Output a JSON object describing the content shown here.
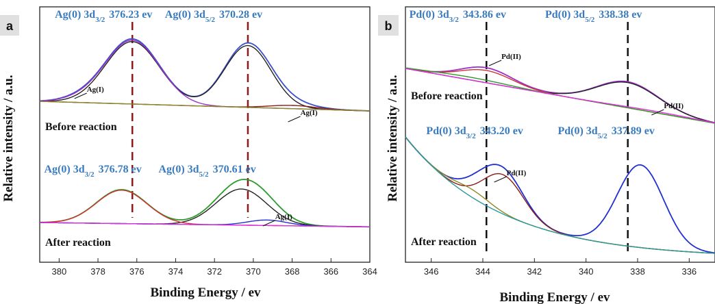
{
  "ylabel": "Relative intensity / a.u.",
  "chart_data": [
    {
      "panel": "a",
      "type": "line",
      "xlabel": "Binding Energy / ev",
      "xlim": [
        381,
        364
      ],
      "xticks": [
        380,
        378,
        376,
        374,
        372,
        370,
        368,
        366,
        364
      ],
      "conditions": [
        "Before reaction",
        "After reaction"
      ],
      "peak_labels": [
        {
          "element": "Ag(0) 3d",
          "sub": "3/2",
          "value": "376.23 ev",
          "energy": 376.23,
          "state": "before"
        },
        {
          "element": "Ag(0) 3d",
          "sub": "5/2",
          "value": "370.28 ev",
          "energy": 370.28,
          "state": "before"
        },
        {
          "element": "Ag(0) 3d",
          "sub": "3/2",
          "value": "376.78 ev",
          "energy": 376.78,
          "state": "after"
        },
        {
          "element": "Ag(0) 3d",
          "sub": "5/2",
          "value": "370.61 ev",
          "energy": 370.61,
          "state": "after"
        }
      ],
      "species_labels": [
        {
          "text": "Ag(I)",
          "energy": 379.0,
          "state": "before"
        },
        {
          "text": "Ag(I)",
          "energy": 368.0,
          "state": "before"
        },
        {
          "text": "Ag(I)",
          "energy": 369.3,
          "state": "after"
        }
      ],
      "reference_lines": [
        376.23,
        370.28
      ],
      "series": [
        {
          "state": "before",
          "role": "envelope",
          "color": "#3b50c8",
          "peaks": [
            [
              376.23,
              1.0,
              1.4
            ],
            [
              370.28,
              0.98,
              1.2
            ],
            [
              378.9,
              0.05,
              1.0
            ],
            [
              368.0,
              0.07,
              1.2
            ]
          ]
        },
        {
          "state": "before",
          "role": "fit",
          "color": "#222222",
          "peaks": [
            [
              376.23,
              0.96,
              1.4
            ],
            [
              370.28,
              0.95,
              1.2
            ]
          ]
        },
        {
          "state": "before",
          "role": "component",
          "color": "#9b30c8",
          "peaks": [
            [
              376.23,
              0.98,
              1.4
            ],
            [
              378.9,
              0.04,
              1.0
            ]
          ]
        },
        {
          "state": "before",
          "role": "component",
          "color": "#8b1a1a",
          "peaks": [
            [
              368.0,
              0.05,
              1.2
            ]
          ]
        },
        {
          "state": "before",
          "role": "baseline",
          "color": "#8a8a2a",
          "peaks": []
        },
        {
          "state": "after",
          "role": "envelope",
          "color": "#2a9a2a",
          "peaks": [
            [
              376.78,
              0.62,
              1.3
            ],
            [
              370.61,
              0.78,
              1.3
            ],
            [
              369.3,
              0.12,
              1.0
            ]
          ]
        },
        {
          "state": "after",
          "role": "fit",
          "color": "#222222",
          "peaks": [
            [
              370.61,
              0.66,
              1.3
            ]
          ]
        },
        {
          "state": "after",
          "role": "component",
          "color": "#d43030",
          "peaks": [
            [
              376.78,
              0.61,
              1.3
            ]
          ]
        },
        {
          "state": "after",
          "role": "component",
          "color": "#2030d0",
          "peaks": [
            [
              369.3,
              0.1,
              1.0
            ]
          ]
        },
        {
          "state": "after",
          "role": "baseline",
          "color": "#e030e0",
          "peaks": []
        }
      ]
    },
    {
      "panel": "b",
      "type": "line",
      "xlabel": "Binding Energy / ev",
      "xlim": [
        347,
        335
      ],
      "xticks": [
        346,
        344,
        342,
        340,
        338,
        336
      ],
      "conditions": [
        "Before reaction",
        "After reaction"
      ],
      "peak_labels": [
        {
          "element": "Pd(0) 3d",
          "sub": "3/2",
          "value": "343.86 ev",
          "energy": 343.86,
          "state": "before"
        },
        {
          "element": "Pd(0) 3d",
          "sub": "5/2",
          "value": "338.38 ev",
          "energy": 338.38,
          "state": "before"
        },
        {
          "element": "Pd(0) 3d",
          "sub": "3/2",
          "value": "343.20 ev",
          "energy": 343.2,
          "state": "after"
        },
        {
          "element": "Pd(0) 3d",
          "sub": "5/2",
          "value": "337.89 ev",
          "energy": 337.89,
          "state": "after"
        }
      ],
      "species_labels": [
        {
          "text": "Pd(II)",
          "energy": 343.6,
          "state": "before"
        },
        {
          "text": "Pd(II)",
          "energy": 337.3,
          "state": "before"
        },
        {
          "text": "Pd(II)",
          "energy": 343.4,
          "state": "after"
        }
      ],
      "reference_lines": [
        343.86,
        338.38
      ],
      "series": [
        {
          "state": "before",
          "role": "envelope",
          "color": "#9b30c8",
          "peaks": [
            [
              343.86,
              0.55,
              1.0
            ],
            [
              338.38,
              0.95,
              1.2
            ]
          ]
        },
        {
          "state": "before",
          "role": "fit",
          "color": "#222222",
          "peaks": [
            [
              338.38,
              0.92,
              1.2
            ]
          ]
        },
        {
          "state": "before",
          "role": "component",
          "color": "#d43030",
          "peaks": [
            [
              343.86,
              0.45,
              1.0
            ]
          ]
        },
        {
          "state": "before",
          "role": "component",
          "color": "#2a9a2a",
          "peaks": [
            [
              344.5,
              0.1,
              1.5
            ]
          ]
        },
        {
          "state": "before",
          "role": "component",
          "color": "#e030e0",
          "peaks": [
            [
              337.3,
              0.05,
              1.5
            ]
          ]
        },
        {
          "state": "after",
          "role": "envelope",
          "color": "#2030d0",
          "peaks": [
            [
              343.2,
              0.55,
              0.8
            ],
            [
              337.89,
              1.05,
              0.9
            ],
            [
              344.2,
              0.12,
              0.7
            ]
          ]
        },
        {
          "state": "after",
          "role": "component",
          "color": "#8b1a1a",
          "peaks": [
            [
              343.2,
              0.5,
              0.8
            ]
          ]
        },
        {
          "state": "after",
          "role": "component",
          "color": "#8a8a2a",
          "peaks": [
            [
              344.4,
              0.1,
              0.7
            ]
          ]
        },
        {
          "state": "after",
          "role": "baseline",
          "color": "#2a9a9a",
          "peaks": []
        }
      ]
    }
  ]
}
